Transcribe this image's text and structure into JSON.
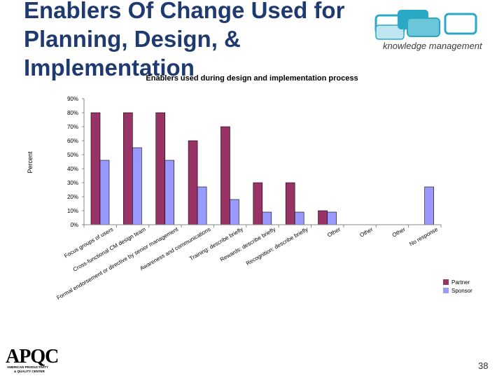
{
  "slide": {
    "title_lines": [
      "Enablers Of Change Used for",
      "Planning, Design, &",
      "Implementation"
    ],
    "km_tagline": "knowledge management",
    "page_number": "38",
    "apqc_logo_text": "APQC",
    "apqc_sub1": "AMERICAN PRODUCTIVITY",
    "apqc_sub2": "& QUALITY CENTER",
    "colors": {
      "title": "#1f3a70",
      "km_teal": "#2ba8c4",
      "km_light": "#bfe6f0"
    }
  },
  "chart_data": {
    "type": "bar",
    "title": "Enablers used during design and implementation process",
    "ylabel": "Percent",
    "xlabel": "",
    "ylim": [
      0,
      90
    ],
    "yticks": [
      "0%",
      "10%",
      "20%",
      "30%",
      "40%",
      "50%",
      "60%",
      "70%",
      "80%",
      "90%"
    ],
    "categories": [
      "Focus groups of users",
      "Cross-functional CM design team",
      "Formal endorsement or directive by senior management",
      "Awareness and communications",
      "Training: describe briefly",
      "Rewards: describe briefly",
      "Recognition: describe briefly",
      "Other",
      "Other",
      "Other",
      "No response"
    ],
    "series": [
      {
        "name": "Partner",
        "color": "#993366",
        "values": [
          80,
          80,
          80,
          60,
          70,
          30,
          30,
          10,
          0,
          0,
          0
        ]
      },
      {
        "name": "Sponsor",
        "color": "#9999ff",
        "values": [
          46,
          55,
          46,
          27,
          18,
          9,
          9,
          9,
          0,
          0,
          27
        ]
      }
    ],
    "legend_position": "bottom-right",
    "grid": false
  }
}
